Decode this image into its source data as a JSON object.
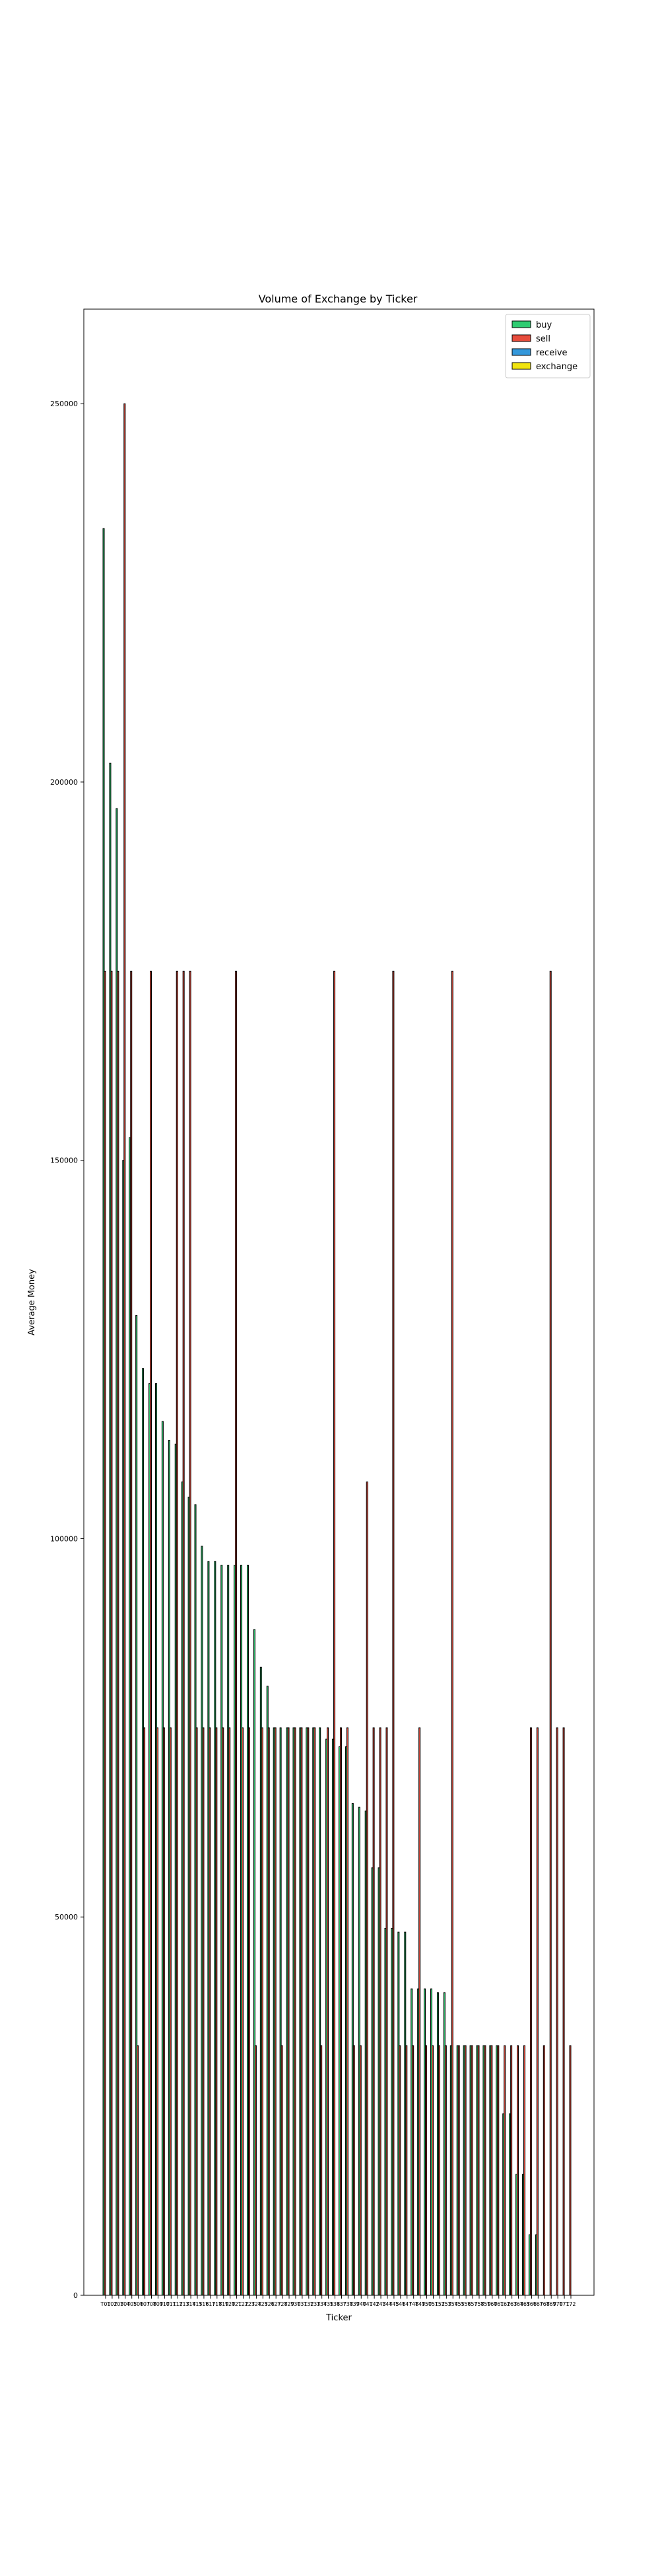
{
  "chart_data": {
    "type": "bar",
    "title": "Volume of Exchange by Ticker",
    "xlabel": "Ticker",
    "ylabel": "Average Money",
    "ylim": [
      0,
      262500
    ],
    "yticks": [
      0,
      50000,
      100000,
      150000,
      200000,
      250000
    ],
    "ytick_labels": [
      "0",
      "50000",
      "100000",
      "150000",
      "200000",
      "250000"
    ],
    "grid": false,
    "legend_position": "top-right",
    "categories": [
      "T01",
      "T02",
      "T03",
      "T04",
      "T05",
      "T06",
      "T07",
      "T08",
      "T09",
      "T10",
      "T11",
      "T12",
      "T13",
      "T14",
      "T15",
      "T16",
      "T17",
      "T18",
      "T19",
      "T20",
      "T21",
      "T22",
      "T23",
      "T24",
      "T25",
      "T26",
      "T27",
      "T28",
      "T29",
      "T30",
      "T31",
      "T32",
      "T33",
      "T34",
      "T35",
      "T36",
      "T37",
      "T38",
      "T39",
      "T40",
      "T41",
      "T42",
      "T43",
      "T44",
      "T45",
      "T46",
      "T47",
      "T48",
      "T49",
      "T50",
      "T51",
      "T52",
      "T53",
      "T54",
      "T55",
      "T56",
      "T57",
      "T58",
      "T59",
      "T60",
      "T61",
      "T62",
      "T63",
      "T64",
      "T65",
      "T66",
      "T67",
      "T68",
      "T69",
      "T70",
      "T71",
      "T72"
    ],
    "series": [
      {
        "name": "buy",
        "color": "#2ecc71",
        "values": [
          233500,
          202500,
          196500,
          150000,
          153000,
          129500,
          122500,
          120500,
          120500,
          115500,
          113000,
          112500,
          107500,
          105500,
          104500,
          99000,
          97000,
          97000,
          96500,
          96500,
          96500,
          96500,
          96500,
          88000,
          83000,
          80500,
          75000,
          75000,
          75000,
          75000,
          75000,
          75000,
          75000,
          75000,
          73500,
          73500,
          72500,
          72500,
          65000,
          64500,
          64000,
          56500,
          56500,
          48500,
          48500,
          48000,
          48000,
          40500,
          40500,
          40500,
          40500,
          40000,
          40000,
          33000,
          33000,
          33000,
          33000,
          33000,
          33000,
          33000,
          33000,
          24000,
          24000,
          16000,
          16000,
          8000,
          8000,
          0,
          0,
          0,
          0,
          0
        ]
      },
      {
        "name": "sell",
        "color": "#e74c3c",
        "values": [
          175000,
          175000,
          175000,
          250000,
          175000,
          33000,
          75000,
          175000,
          75000,
          75000,
          75000,
          175000,
          175000,
          175000,
          75000,
          75000,
          75000,
          75000,
          75000,
          75000,
          175000,
          75000,
          75000,
          33000,
          75000,
          75000,
          75000,
          33000,
          75000,
          75000,
          75000,
          75000,
          75000,
          33000,
          75000,
          175000,
          75000,
          75000,
          33000,
          33000,
          107500,
          75000,
          75000,
          75000,
          175000,
          33000,
          33000,
          33000,
          75000,
          33000,
          33000,
          33000,
          33000,
          175000,
          33000,
          33000,
          33000,
          33000,
          33000,
          33000,
          33000,
          33000,
          33000,
          33000,
          33000,
          75000,
          75000,
          33000,
          175000,
          75000,
          75000,
          33000
        ]
      },
      {
        "name": "receive",
        "color": "#3498db",
        "values": [
          0,
          0,
          0,
          0,
          0,
          0,
          0,
          0,
          0,
          0,
          0,
          0,
          0,
          0,
          0,
          0,
          0,
          0,
          0,
          0,
          0,
          0,
          0,
          0,
          0,
          0,
          0,
          0,
          0,
          0,
          0,
          0,
          0,
          0,
          0,
          0,
          0,
          0,
          0,
          0,
          0,
          0,
          0,
          0,
          0,
          0,
          0,
          0,
          0,
          0,
          0,
          0,
          0,
          0,
          0,
          0,
          0,
          0,
          0,
          0,
          0,
          0,
          0,
          0,
          0,
          0,
          0,
          0,
          0,
          0,
          0,
          0
        ]
      },
      {
        "name": "exchange",
        "color": "#f1e40f",
        "values": [
          0,
          0,
          0,
          0,
          0,
          0,
          0,
          0,
          0,
          0,
          0,
          0,
          0,
          0,
          0,
          0,
          0,
          0,
          0,
          0,
          0,
          0,
          0,
          0,
          0,
          0,
          0,
          0,
          0,
          0,
          0,
          0,
          0,
          0,
          0,
          0,
          0,
          0,
          0,
          0,
          0,
          0,
          0,
          0,
          0,
          0,
          0,
          0,
          0,
          0,
          0,
          0,
          0,
          0,
          0,
          0,
          0,
          0,
          0,
          0,
          0,
          0,
          0,
          0,
          0,
          0,
          0,
          0,
          0,
          0,
          0,
          0
        ]
      }
    ]
  }
}
